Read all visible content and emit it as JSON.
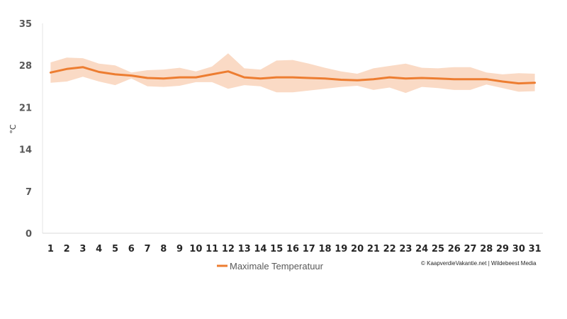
{
  "chart_data": {
    "type": "line",
    "xlabel": "",
    "ylabel": "°C",
    "ylim": [
      0,
      35
    ],
    "yticks": [
      "0",
      "7",
      "14",
      "21",
      "28",
      "35"
    ],
    "categories": [
      "1",
      "2",
      "3",
      "4",
      "5",
      "6",
      "7",
      "8",
      "9",
      "10",
      "11",
      "12",
      "13",
      "14",
      "15",
      "16",
      "17",
      "18",
      "19",
      "20",
      "21",
      "22",
      "23",
      "24",
      "25",
      "26",
      "27",
      "28",
      "29",
      "30",
      "31"
    ],
    "series": [
      {
        "name": "Maximale Temperatuur",
        "color": "#ED7D31",
        "values": [
          26.8,
          27.4,
          27.7,
          26.9,
          26.5,
          26.3,
          25.9,
          25.8,
          26.0,
          26.0,
          26.5,
          27.0,
          26.0,
          25.8,
          26.0,
          26.0,
          25.9,
          25.8,
          25.6,
          25.5,
          25.7,
          26.0,
          25.8,
          25.9,
          25.8,
          25.7,
          25.7,
          25.7,
          25.3,
          25.0,
          25.1
        ]
      }
    ],
    "band": {
      "color": "#F8CBAD",
      "upper": [
        28.5,
        29.3,
        29.2,
        28.3,
        28.0,
        26.8,
        27.2,
        27.3,
        27.6,
        27.0,
        27.8,
        30.0,
        27.5,
        27.3,
        28.8,
        28.9,
        28.3,
        27.6,
        27.0,
        26.6,
        27.5,
        27.9,
        28.3,
        27.6,
        27.5,
        27.7,
        27.7,
        26.8,
        26.5,
        26.7,
        26.6
      ],
      "lower": [
        25.1,
        25.3,
        26.1,
        25.3,
        24.7,
        25.8,
        24.5,
        24.4,
        24.6,
        25.2,
        25.2,
        24.1,
        24.7,
        24.5,
        23.5,
        23.5,
        23.8,
        24.1,
        24.4,
        24.6,
        23.9,
        24.3,
        23.4,
        24.4,
        24.2,
        23.9,
        23.9,
        24.8,
        24.2,
        23.6,
        23.7
      ]
    },
    "grid": false,
    "legend": "bottom"
  },
  "credit": "© KaapverdieVakantie.net | Wildebeest Media"
}
